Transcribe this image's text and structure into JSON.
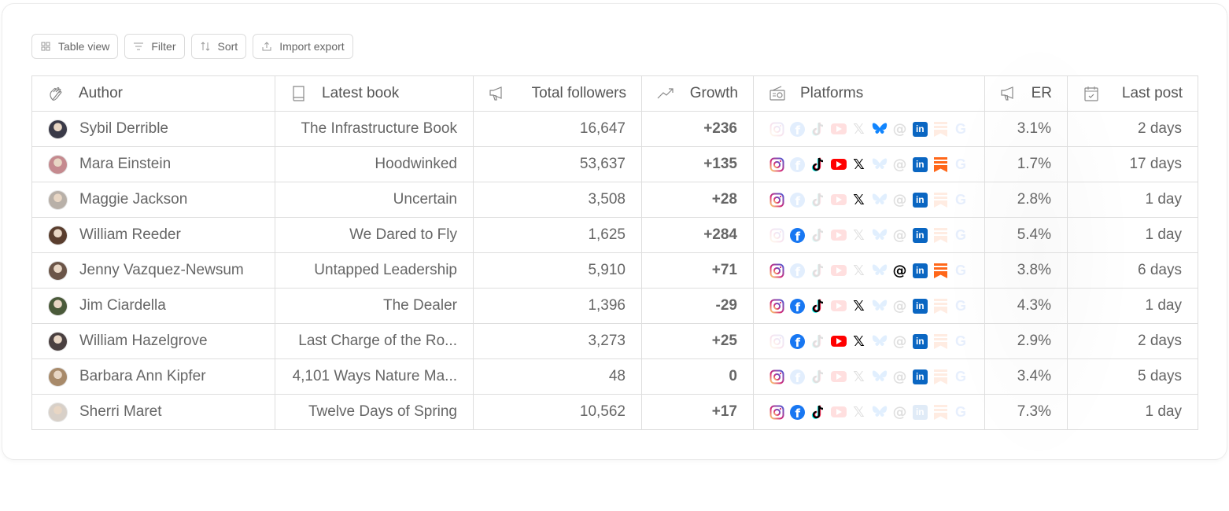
{
  "toolbar": {
    "table_view": "Table view",
    "filter": "Filter",
    "sort": "Sort",
    "import_export": "Import export"
  },
  "columns": {
    "author": "Author",
    "latest_book": "Latest book",
    "total_followers": "Total followers",
    "growth": "Growth",
    "platforms": "Platforms",
    "er": "ER",
    "last_post": "Last post"
  },
  "colors": {
    "positive": "#49a84a",
    "negative": "#c81d1d",
    "instagram": "#e1306c",
    "facebook": "#1877f2",
    "youtube": "#ff0000",
    "linkedin": "#0a66c2",
    "bluesky": "#1185fe",
    "substack": "#ff6719"
  },
  "platform_order": [
    "instagram",
    "facebook",
    "tiktok",
    "youtube",
    "x",
    "bluesky",
    "threads",
    "linkedin",
    "substack",
    "google"
  ],
  "rows": [
    {
      "author": "Sybil Derrible",
      "book": "The Infrastructure Book",
      "followers": "16,647",
      "growth": "+236",
      "growth_sign": "pos",
      "er": "3.1%",
      "last_post": "2 days",
      "avatar": "#3a3a48",
      "active": [
        "bluesky",
        "linkedin"
      ]
    },
    {
      "author": "Mara Einstein",
      "book": "Hoodwinked",
      "followers": "53,637",
      "growth": "+135",
      "growth_sign": "pos",
      "er": "1.7%",
      "last_post": "17 days",
      "avatar": "#c58a8f",
      "active": [
        "instagram",
        "tiktok",
        "youtube",
        "x",
        "linkedin",
        "substack"
      ]
    },
    {
      "author": "Maggie Jackson",
      "book": "Uncertain",
      "followers": "3,508",
      "growth": "+28",
      "growth_sign": "pos",
      "er": "2.8%",
      "last_post": "1 day",
      "avatar": "#b8b0a8",
      "active": [
        "instagram",
        "x",
        "linkedin"
      ]
    },
    {
      "author": "William Reeder",
      "book": "We Dared to Fly",
      "followers": "1,625",
      "growth": "+284",
      "growth_sign": "pos",
      "er": "5.4%",
      "last_post": "1 day",
      "avatar": "#5a3e2e",
      "active": [
        "facebook",
        "linkedin"
      ]
    },
    {
      "author": "Jenny Vazquez-Newsum",
      "book": "Untapped Leadership",
      "followers": "5,910",
      "growth": "+71",
      "growth_sign": "pos",
      "er": "3.8%",
      "last_post": "6 days",
      "avatar": "#6b5548",
      "active": [
        "instagram",
        "threads",
        "linkedin",
        "substack"
      ]
    },
    {
      "author": "Jim Ciardella",
      "book": "The Dealer",
      "followers": "1,396",
      "growth": "-29",
      "growth_sign": "neg",
      "er": "4.3%",
      "last_post": "1 day",
      "avatar": "#4a5a3a",
      "active": [
        "instagram",
        "facebook",
        "tiktok",
        "x",
        "linkedin"
      ]
    },
    {
      "author": "William Hazelgrove",
      "book": "Last Charge of the Ro...",
      "followers": "3,273",
      "growth": "+25",
      "growth_sign": "pos",
      "er": "2.9%",
      "last_post": "2 days",
      "avatar": "#4a4040",
      "active": [
        "facebook",
        "youtube",
        "x",
        "linkedin"
      ]
    },
    {
      "author": "Barbara Ann Kipfer",
      "book": "4,101 Ways Nature Ma...",
      "followers": "48",
      "growth": "0",
      "growth_sign": "zero",
      "er": "3.4%",
      "last_post": "5 days",
      "avatar": "#a88a6a",
      "active": [
        "instagram",
        "linkedin"
      ]
    },
    {
      "author": "Sherri Maret",
      "book": "Twelve Days of Spring",
      "followers": "10,562",
      "growth": "+17",
      "growth_sign": "pos",
      "er": "7.3%",
      "last_post": "1 day",
      "avatar": "#d8d0c8",
      "active": [
        "instagram",
        "facebook",
        "tiktok"
      ]
    }
  ]
}
